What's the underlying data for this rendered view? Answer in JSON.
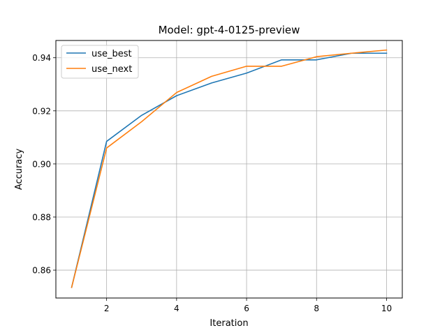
{
  "chart_data": {
    "type": "line",
    "title": "Model: gpt-4-0125-preview",
    "xlabel": "Iteration",
    "ylabel": "Accuracy",
    "xlim": [
      0.55,
      10.45
    ],
    "ylim": [
      0.8495,
      0.9465
    ],
    "xticks": [
      2,
      4,
      6,
      8,
      10
    ],
    "yticks": [
      0.86,
      0.88,
      0.9,
      0.92,
      0.94
    ],
    "ytick_labels": [
      "0.86",
      "0.88",
      "0.90",
      "0.92",
      "0.94"
    ],
    "grid": true,
    "legend_position": "top-left",
    "x": [
      1,
      2,
      3,
      4,
      5,
      6,
      7,
      8,
      9,
      10
    ],
    "series": [
      {
        "name": "use_best",
        "color": "#1f77b4",
        "values": [
          0.8535,
          0.9085,
          0.9183,
          0.9257,
          0.9305,
          0.9342,
          0.9392,
          0.9392,
          0.9417,
          0.9417
        ]
      },
      {
        "name": "use_next",
        "color": "#ff7f0e",
        "values": [
          0.8535,
          0.906,
          0.9159,
          0.9269,
          0.933,
          0.9368,
          0.9368,
          0.9404,
          0.9417,
          0.9429
        ]
      }
    ]
  }
}
